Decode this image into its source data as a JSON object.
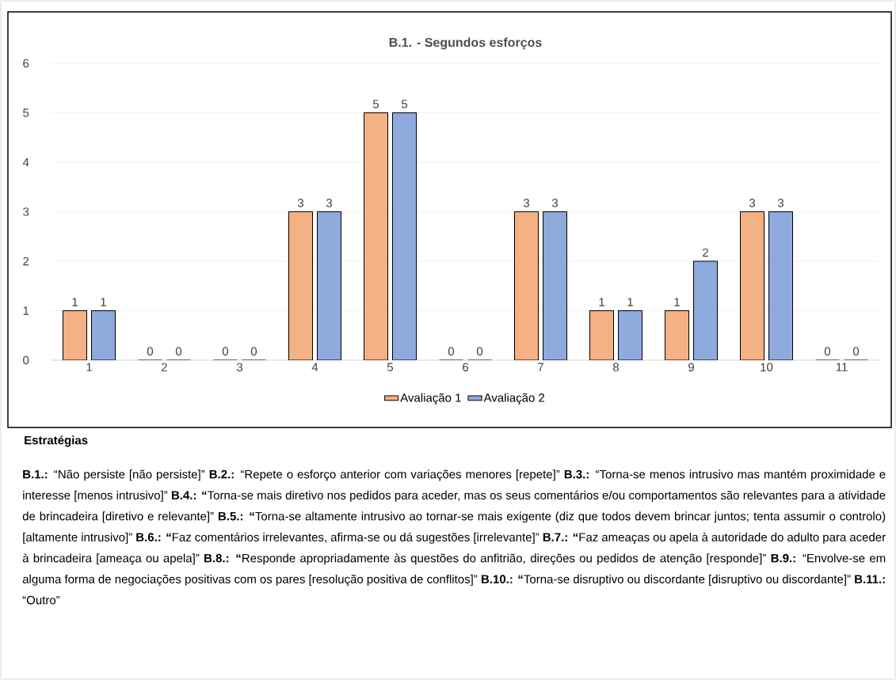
{
  "chart_data": {
    "type": "bar",
    "title": "B.1. - Segundos esforços",
    "categories": [
      "1",
      "2",
      "3",
      "4",
      "5",
      "6",
      "7",
      "8",
      "9",
      "10",
      "11"
    ],
    "series": [
      {
        "name": "Avaliação 1",
        "color": "#f4b183",
        "values": [
          1,
          0,
          0,
          3,
          5,
          0,
          3,
          1,
          1,
          3,
          0
        ]
      },
      {
        "name": "Avaliação 2",
        "color": "#8faadc",
        "values": [
          1,
          0,
          0,
          3,
          5,
          0,
          3,
          1,
          2,
          3,
          0
        ]
      }
    ],
    "ylim": [
      0,
      6
    ],
    "yticks": [
      0,
      1,
      2,
      3,
      4,
      5,
      6
    ],
    "grid": "y",
    "legend": "bottom",
    "data_labels": true,
    "annotations": [
      "Estratégias",
      "**B.1.:** “Não persiste [não persiste]”  **B.2.:** “Repete o esforço anterior com variações menores [repete]” **B.3.:** “Torna-se menos intrusivo mas mantém proximidade e interesse [menos intrusivo]” **B.4.:** **“**Torna-se mais diretivo nos pedidos para aceder, mas os seus comentários e/ou comportamentos são relevantes para a atividade de brincadeira [diretivo e relevante]” **B.5.:** **“**Torna-se altamente intrusivo ao tornar-se mais exigente (diz que todos devem brincar juntos; tenta assumir o controlo) [altamente intrusivo]”  **B.6.:** **“**Faz comentários irrelevantes, afirma-se ou dá sugestões [irrelevante]” **B.7.:** **“**Faz ameaças ou apela à autoridade do adulto para aceder à brincadeira [ameaça ou apela]” **B.8.:** **“**Responde apropriadamente às questões do anfitrião, direções ou pedidos de atenção [responde]” **B.9.:** “Envolve-se em alguma forma de negociações positivas com os pares [resolução positiva de conflitos]” **B.10.:** **“**Torna-se disruptivo ou discordante [disruptivo ou discordante]” **B.11.:** “Outro”"
    ]
  }
}
